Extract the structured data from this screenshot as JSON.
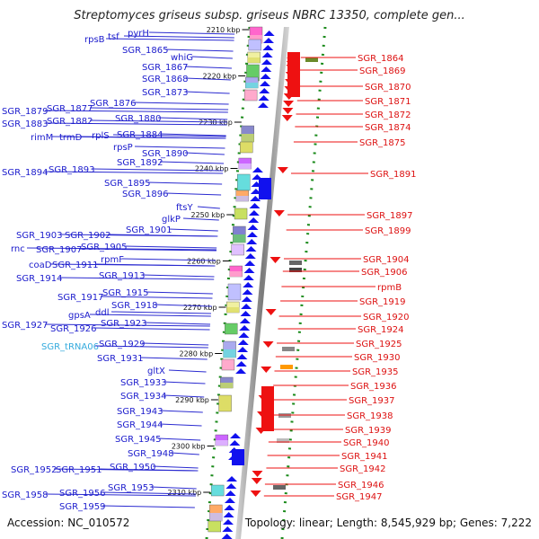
{
  "title": "Streptomyces griseus subsp. griseus NBRC 13350, complete gen...",
  "accession_label": "Accession: NC_010572",
  "topology_label": "Topology: linear; Length: 8,545,929 bp; Genes: 7,222",
  "colors": {
    "left_label": "#1a1acc",
    "right_label": "#dd1111",
    "rna_label": "#33aadd",
    "leftline": "#2a2ad0",
    "rightline": "#ee1111",
    "backbone": "#999999",
    "dotted": "#1a8a1a"
  },
  "kbp_ticks": [
    "2210 kbp",
    "2220 kbp",
    "2230 kbp",
    "2240 kbp",
    "2250 kbp",
    "2260 kbp",
    "2270 kbp",
    "2280 kbp",
    "2290 kbp",
    "2300 kbp",
    "2310 kbp"
  ],
  "left_labels": [
    "tsf",
    "pyrH",
    "rpsB",
    "SGR_1865",
    "whiG",
    "SGR_1867",
    "SGR_1868",
    "SGR_1873",
    "SGR_1879",
    "SGR_1877",
    "SGR_1876",
    "SGR_1883",
    "SGR_1882",
    "SGR_1880",
    "rimM",
    "trmD",
    "rplS",
    "SGR_1884",
    "rpsP",
    "SGR_1890",
    "SGR_1892",
    "SGR_1894",
    "SGR_1893",
    "SGR_1895",
    "SGR_1896",
    "ftsY",
    "glkP",
    "SGR_1901",
    "SGR_1903",
    "SGR_1902",
    "rnc",
    "SGR_1907",
    "SGR_1905",
    "rpmF",
    "coaD",
    "SGR_1911",
    "SGR_1914",
    "SGR_1913",
    "SGR_1917",
    "SGR_1915",
    "SGR_1918",
    "gpsA",
    "ddl",
    "SGR_1927",
    "SGR_1926",
    "SGR_1923",
    "SGR_tRNA06",
    "SGR_1929",
    "SGR_1931",
    "gltX",
    "SGR_1933",
    "SGR_1934",
    "SGR_1943",
    "SGR_1944",
    "SGR_1945",
    "SGR_1948",
    "SGR_1952",
    "SGR_1951",
    "SGR_1950",
    "SGR_1953",
    "SGR_1958",
    "SGR_1956",
    "SGR_1959"
  ],
  "right_labels": [
    "SGR_1864",
    "SGR_1869",
    "SGR_1870",
    "SGR_1871",
    "SGR_1872",
    "SGR_1874",
    "SGR_1875",
    "SGR_1891",
    "SGR_1897",
    "SGR_1899",
    "SGR_1904",
    "SGR_1906",
    "rpmB",
    "SGR_1919",
    "SGR_1920",
    "SGR_1924",
    "SGR_1925",
    "SGR_1930",
    "SGR_1935",
    "SGR_1936",
    "SGR_1937",
    "SGR_1938",
    "SGR_1939",
    "SGR_1940",
    "SGR_1941",
    "SGR_1942",
    "SGR_1946",
    "SGR_1947"
  ]
}
